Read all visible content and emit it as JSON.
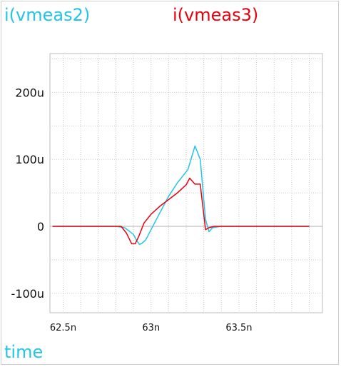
{
  "chart_data": {
    "type": "line",
    "x_unit": "s",
    "y_unit": "A",
    "xlim": [
      62.425,
      63.975
    ],
    "ylim": [
      -129,
      258
    ],
    "xticks": [
      {
        "v": 62.5,
        "label": "62.5n"
      },
      {
        "v": 63.0,
        "label": "63n"
      },
      {
        "v": 63.5,
        "label": "63.5n"
      }
    ],
    "yticks": [
      {
        "v": 200,
        "label": "200u"
      },
      {
        "v": 100,
        "label": "100u"
      },
      {
        "v": 0,
        "label": "0"
      },
      {
        "v": -100,
        "label": "-100u"
      }
    ],
    "xlabel": "time",
    "grid": true,
    "legend_position": "top",
    "series": [
      {
        "name": "i(vmeas2)",
        "color": "#22c5e8",
        "x": [
          62.44,
          62.8,
          62.85,
          62.87,
          62.9,
          62.92,
          62.935,
          62.95,
          62.97,
          63.0,
          63.05,
          63.1,
          63.15,
          63.18,
          63.21,
          63.25,
          63.28,
          63.31,
          63.33,
          63.35,
          63.4,
          63.45,
          63.5,
          63.6,
          63.7,
          63.8,
          63.9
        ],
        "values": [
          0,
          0,
          -2,
          -6,
          -12,
          -22,
          -27,
          -25,
          -20,
          -5,
          20,
          45,
          65,
          75,
          85,
          120,
          100,
          10,
          -8,
          -2,
          0,
          0,
          0,
          0,
          0,
          0,
          0
        ]
      },
      {
        "name": "i(vmeas3)",
        "color": "#e8000c",
        "x": [
          62.44,
          62.8,
          62.83,
          62.86,
          62.89,
          62.91,
          62.93,
          62.96,
          63.0,
          63.05,
          63.1,
          63.15,
          63.2,
          63.22,
          63.25,
          63.28,
          63.31,
          63.33,
          63.36,
          63.4,
          63.5,
          63.6,
          63.7,
          63.8,
          63.9
        ],
        "values": [
          0,
          0,
          0,
          -10,
          -26,
          -26,
          -15,
          5,
          18,
          30,
          40,
          50,
          62,
          72,
          63,
          63,
          -5,
          -2,
          0,
          0,
          0,
          0,
          0,
          0,
          0
        ]
      }
    ]
  }
}
